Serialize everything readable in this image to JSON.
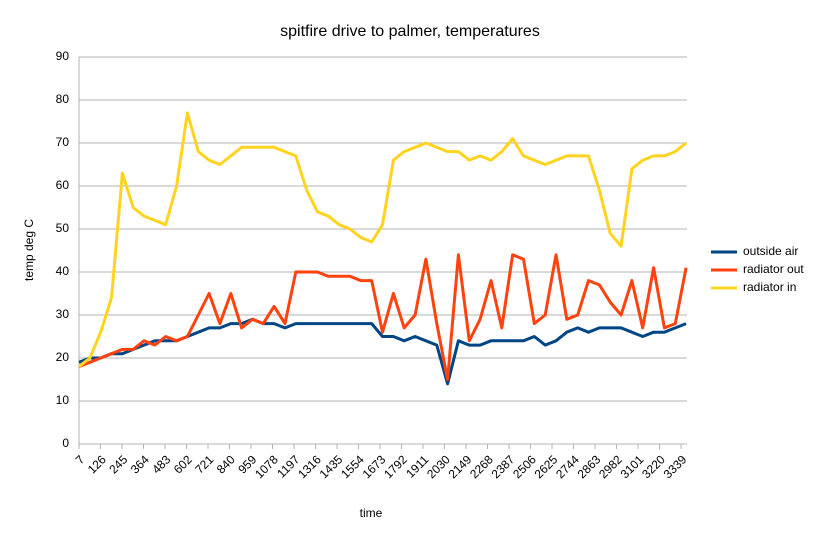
{
  "chart_data": {
    "type": "line",
    "title": "spitfire drive to palmer, temperatures",
    "x_label": "time",
    "y_label": "temp deg C",
    "x": [
      7,
      67,
      127,
      187,
      247,
      307,
      367,
      427,
      487,
      547,
      607,
      667,
      727,
      787,
      847,
      907,
      967,
      1027,
      1087,
      1147,
      1207,
      1267,
      1327,
      1387,
      1447,
      1507,
      1567,
      1627,
      1687,
      1747,
      1807,
      1867,
      1927,
      1987,
      2047,
      2107,
      2167,
      2227,
      2287,
      2347,
      2407,
      2467,
      2527,
      2587,
      2647,
      2707,
      2767,
      2827,
      2887,
      2947,
      3007,
      3067,
      3127,
      3187,
      3247,
      3307,
      3367
    ],
    "xlim": [
      7,
      3372
    ],
    "xticks": [
      7,
      126,
      245,
      364,
      483,
      602,
      721,
      840,
      959,
      1078,
      1197,
      1316,
      1435,
      1554,
      1673,
      1792,
      1911,
      2030,
      2149,
      2268,
      2387,
      2506,
      2625,
      2744,
      2863,
      2982,
      3101,
      3220,
      3339
    ],
    "ylim": [
      0,
      90
    ],
    "yticks": [
      0,
      10,
      20,
      30,
      40,
      50,
      60,
      70,
      80,
      90
    ],
    "grid": true,
    "legend": "right",
    "series": [
      {
        "name": "outside air",
        "color": "#004586",
        "values": [
          19,
          20,
          20,
          21,
          21,
          22,
          23,
          24,
          24,
          24,
          25,
          26,
          27,
          27,
          28,
          28,
          29,
          28,
          28,
          27,
          28,
          28,
          28,
          28,
          28,
          28,
          28,
          28,
          25,
          25,
          24,
          25,
          24,
          23,
          14,
          24,
          23,
          23,
          24,
          24,
          24,
          24,
          25,
          23,
          24,
          26,
          27,
          26,
          27,
          27,
          27,
          26,
          25,
          26,
          26,
          27,
          28
        ]
      },
      {
        "name": "radiator out",
        "color": "#ff420e",
        "values": [
          18,
          19,
          20,
          21,
          22,
          22,
          24,
          23,
          25,
          24,
          25,
          30,
          35,
          28,
          35,
          27,
          29,
          28,
          32,
          28,
          40,
          40,
          40,
          39,
          39,
          39,
          38,
          38,
          26,
          35,
          27,
          30,
          43,
          28,
          15,
          44,
          24,
          29,
          38,
          27,
          44,
          43,
          28,
          30,
          44,
          29,
          30,
          38,
          37,
          33,
          30,
          38,
          27,
          41,
          27,
          28,
          41
        ]
      },
      {
        "name": "radiator in",
        "color": "#ffd320",
        "values": [
          18,
          20,
          26,
          34,
          63,
          55,
          53,
          52,
          51,
          60,
          77,
          68,
          66,
          65,
          67,
          69,
          69,
          69,
          69,
          68,
          67,
          59,
          54,
          53,
          51,
          50,
          48,
          47,
          51,
          66,
          68,
          69,
          70,
          69,
          68,
          68,
          66,
          67,
          66,
          68,
          71,
          67,
          66,
          65,
          66,
          67,
          67,
          67,
          59,
          49,
          46,
          64,
          66,
          67,
          67,
          68,
          70
        ]
      }
    ]
  }
}
